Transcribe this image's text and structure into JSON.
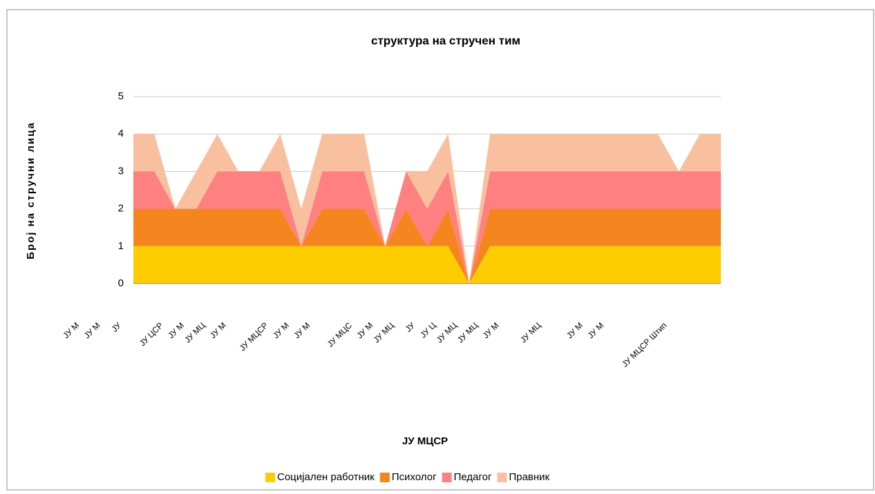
{
  "chart_data": {
    "type": "stacked_area",
    "title": "структура на стручен тим",
    "y_label": "Број на стручни лица",
    "x_label": "ЈУ МЦСР",
    "categories": [
      "ЈУ М",
      "ЈУ М",
      "ЈУ",
      null,
      "ЈУ ЦСР",
      "ЈУ М",
      "ЈУ МЦ",
      "ЈУ М",
      null,
      "ЈУ МЦСР",
      "ЈУ М",
      "ЈУ М",
      null,
      "ЈУ МЦС",
      "ЈУ М",
      "ЈУ МЦ",
      "ЈУ",
      "ЈУ Ц",
      "ЈУ МЦ",
      "ЈУ МЦ",
      "ЈУ М",
      null,
      "ЈУ МЦ",
      null,
      "ЈУ М",
      "ЈУ М",
      null,
      null,
      "ЈУ МЦСР Штип"
    ],
    "series": [
      {
        "name": "Социјален работник",
        "color": "#ffcc00",
        "values": [
          1,
          1,
          1,
          1,
          1,
          1,
          1,
          1,
          1,
          1,
          1,
          1,
          1,
          1,
          1,
          1,
          0,
          1,
          1,
          1,
          1,
          1,
          1,
          1,
          1,
          1,
          1,
          1,
          1
        ]
      },
      {
        "name": "Психолог",
        "color": "#f5861f",
        "values": [
          1,
          1,
          1,
          1,
          1,
          1,
          1,
          1,
          0,
          1,
          1,
          1,
          0,
          1,
          0,
          1,
          0,
          1,
          1,
          1,
          1,
          1,
          1,
          1,
          1,
          1,
          1,
          1,
          1
        ]
      },
      {
        "name": "Педагог",
        "color": "#ff8080",
        "values": [
          1,
          1,
          0,
          0,
          1,
          1,
          1,
          1,
          0,
          1,
          1,
          1,
          0,
          1,
          1,
          1,
          0,
          1,
          1,
          1,
          1,
          1,
          1,
          1,
          1,
          1,
          1,
          1,
          1
        ]
      },
      {
        "name": "Правник",
        "color": "#f9c0a0",
        "values": [
          1,
          1,
          0,
          1,
          1,
          0,
          0,
          1,
          1,
          1,
          1,
          1,
          0,
          0,
          1,
          1,
          0,
          1,
          1,
          1,
          1,
          1,
          1,
          1,
          1,
          1,
          0,
          1,
          1
        ]
      }
    ],
    "ylim": [
      0,
      5
    ],
    "yticks": [
      0,
      1,
      2,
      3,
      4,
      5
    ],
    "grid": true,
    "legend": "bottom"
  }
}
